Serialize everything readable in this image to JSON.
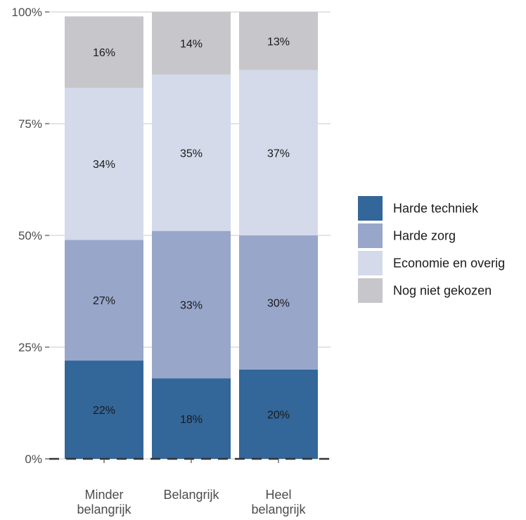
{
  "chart_data": {
    "type": "bar",
    "stacked": true,
    "percent": true,
    "categories": [
      [
        "Minder",
        "belangrijk"
      ],
      [
        "Belangrijk"
      ],
      [
        "Heel",
        "belangrijk"
      ]
    ],
    "series": [
      {
        "name": "Harde techniek",
        "color": "#336699",
        "values": [
          22,
          18,
          20
        ],
        "labels": [
          "22%",
          "18%",
          "20%"
        ]
      },
      {
        "name": "Harde zorg",
        "color": "#98A6CA",
        "values": [
          27,
          33,
          30
        ],
        "labels": [
          "27%",
          "33%",
          "30%"
        ]
      },
      {
        "name": "Economie en overig",
        "color": "#D4DAEA",
        "values": [
          34,
          35,
          37
        ],
        "labels": [
          "34%",
          "35%",
          "37%"
        ]
      },
      {
        "name": "Nog niet gekozen",
        "color": "#C7C7CB",
        "values": [
          16,
          14,
          13
        ],
        "labels": [
          "16%",
          "14%",
          "13%"
        ]
      }
    ],
    "yticks": [
      "0%",
      "25%",
      "50%",
      "75%",
      "100%"
    ],
    "ylim": [
      0,
      100
    ],
    "grid": true,
    "legend_position": "right",
    "baseline_style": "dashed"
  }
}
